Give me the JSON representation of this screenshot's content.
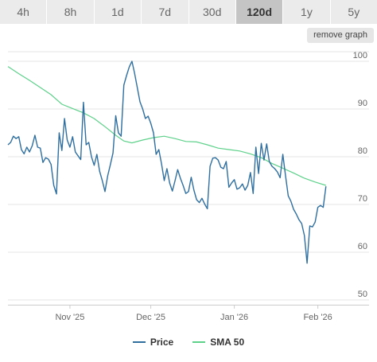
{
  "toolbar": {
    "ranges": [
      {
        "label": "4h",
        "active": false
      },
      {
        "label": "8h",
        "active": false
      },
      {
        "label": "1d",
        "active": false
      },
      {
        "label": "7d",
        "active": false
      },
      {
        "label": "30d",
        "active": false
      },
      {
        "label": "120d",
        "active": true
      },
      {
        "label": "1y",
        "active": false
      },
      {
        "label": "5y",
        "active": false
      }
    ],
    "remove_label": "remove graph"
  },
  "colors": {
    "price": "#2f6fa0",
    "sma": "#5dd18a",
    "grid": "#e6e6e6"
  },
  "chart_data": {
    "type": "line",
    "x_start": "2025-10-09",
    "x_end": "2026-02-20",
    "xticks": [
      {
        "date": "2025-11-01",
        "label": "Nov '25"
      },
      {
        "date": "2025-12-01",
        "label": "Dec '25"
      },
      {
        "date": "2026-01-01",
        "label": "Jan '26"
      },
      {
        "date": "2026-02-01",
        "label": "Feb '26"
      }
    ],
    "ylim": [
      49,
      102
    ],
    "yticks": [
      50,
      60,
      70,
      80,
      90,
      100
    ],
    "grid": true,
    "legend": "bottom",
    "series": [
      {
        "name": "Price",
        "points": [
          [
            "2025-10-09",
            82.5
          ],
          [
            "2025-10-10",
            83.0
          ],
          [
            "2025-10-11",
            84.3
          ],
          [
            "2025-10-12",
            83.8
          ],
          [
            "2025-10-13",
            84.2
          ],
          [
            "2025-10-14",
            81.5
          ],
          [
            "2025-10-15",
            80.6
          ],
          [
            "2025-10-16",
            82.0
          ],
          [
            "2025-10-17",
            81.0
          ],
          [
            "2025-10-18",
            82.3
          ],
          [
            "2025-10-19",
            84.5
          ],
          [
            "2025-10-20",
            82.0
          ],
          [
            "2025-10-21",
            81.8
          ],
          [
            "2025-10-22",
            78.8
          ],
          [
            "2025-10-23",
            79.8
          ],
          [
            "2025-10-24",
            79.5
          ],
          [
            "2025-10-25",
            78.4
          ],
          [
            "2025-10-26",
            74.0
          ],
          [
            "2025-10-27",
            72.2
          ],
          [
            "2025-10-28",
            85.0
          ],
          [
            "2025-10-29",
            81.3
          ],
          [
            "2025-10-30",
            88.0
          ],
          [
            "2025-10-31",
            83.5
          ],
          [
            "2025-11-01",
            82.0
          ],
          [
            "2025-11-02",
            84.2
          ],
          [
            "2025-11-03",
            81.0
          ],
          [
            "2025-11-04",
            80.2
          ],
          [
            "2025-11-05",
            79.4
          ],
          [
            "2025-11-06",
            91.4
          ],
          [
            "2025-11-07",
            82.5
          ],
          [
            "2025-11-08",
            83.0
          ],
          [
            "2025-11-09",
            80.0
          ],
          [
            "2025-11-10",
            78.2
          ],
          [
            "2025-11-11",
            80.5
          ],
          [
            "2025-11-12",
            77.0
          ],
          [
            "2025-11-13",
            75.0
          ],
          [
            "2025-11-14",
            72.7
          ],
          [
            "2025-11-15",
            76.0
          ],
          [
            "2025-11-16",
            78.3
          ],
          [
            "2025-11-17",
            80.8
          ],
          [
            "2025-11-18",
            88.6
          ],
          [
            "2025-11-19",
            85.0
          ],
          [
            "2025-11-20",
            84.3
          ],
          [
            "2025-11-21",
            95.0
          ],
          [
            "2025-11-22",
            97.0
          ],
          [
            "2025-11-23",
            98.8
          ],
          [
            "2025-11-24",
            100.0
          ],
          [
            "2025-11-25",
            97.5
          ],
          [
            "2025-11-26",
            94.5
          ],
          [
            "2025-11-27",
            91.5
          ],
          [
            "2025-11-28",
            90.0
          ],
          [
            "2025-11-29",
            88.0
          ],
          [
            "2025-11-30",
            88.5
          ],
          [
            "2025-12-01",
            87.0
          ],
          [
            "2025-12-02",
            85.0
          ],
          [
            "2025-12-03",
            80.5
          ],
          [
            "2025-12-04",
            81.5
          ],
          [
            "2025-12-05",
            78.5
          ],
          [
            "2025-12-06",
            75.0
          ],
          [
            "2025-12-07",
            77.5
          ],
          [
            "2025-12-08",
            74.5
          ],
          [
            "2025-12-09",
            72.8
          ],
          [
            "2025-12-10",
            75.0
          ],
          [
            "2025-12-11",
            77.3
          ],
          [
            "2025-12-12",
            75.5
          ],
          [
            "2025-12-13",
            74.0
          ],
          [
            "2025-12-14",
            72.3
          ],
          [
            "2025-12-15",
            72.7
          ],
          [
            "2025-12-16",
            75.7
          ],
          [
            "2025-12-17",
            73.0
          ],
          [
            "2025-12-18",
            71.0
          ],
          [
            "2025-12-19",
            70.4
          ],
          [
            "2025-12-20",
            71.3
          ],
          [
            "2025-12-21",
            70.1
          ],
          [
            "2025-12-22",
            69.1
          ],
          [
            "2025-12-23",
            78.0
          ],
          [
            "2025-12-24",
            79.7
          ],
          [
            "2025-12-25",
            79.8
          ],
          [
            "2025-12-26",
            79.3
          ],
          [
            "2025-12-27",
            77.8
          ],
          [
            "2025-12-28",
            77.5
          ],
          [
            "2025-12-29",
            79.0
          ],
          [
            "2025-12-30",
            73.6
          ],
          [
            "2025-12-31",
            74.5
          ],
          [
            "2026-01-01",
            75.2
          ],
          [
            "2026-01-02",
            73.2
          ],
          [
            "2026-01-03",
            73.5
          ],
          [
            "2026-01-04",
            74.3
          ],
          [
            "2026-01-05",
            73.0
          ],
          [
            "2026-01-06",
            74.0
          ],
          [
            "2026-01-07",
            76.7
          ],
          [
            "2026-01-08",
            72.3
          ],
          [
            "2026-01-09",
            82.0
          ],
          [
            "2026-01-10",
            76.5
          ],
          [
            "2026-01-11",
            82.8
          ],
          [
            "2026-01-12",
            79.3
          ],
          [
            "2026-01-13",
            82.7
          ],
          [
            "2026-01-14",
            79.0
          ],
          [
            "2026-01-15",
            78.0
          ],
          [
            "2026-01-16",
            77.5
          ],
          [
            "2026-01-17",
            76.8
          ],
          [
            "2026-01-18",
            75.6
          ],
          [
            "2026-01-19",
            80.5
          ],
          [
            "2026-01-20",
            76.0
          ],
          [
            "2026-01-21",
            71.8
          ],
          [
            "2026-01-22",
            70.7
          ],
          [
            "2026-01-23",
            69.0
          ],
          [
            "2026-01-24",
            68.0
          ],
          [
            "2026-01-25",
            66.8
          ],
          [
            "2026-01-26",
            66.0
          ],
          [
            "2026-01-27",
            63.5
          ],
          [
            "2026-01-28",
            57.7
          ],
          [
            "2026-01-29",
            65.5
          ],
          [
            "2026-01-30",
            65.3
          ],
          [
            "2026-01-31",
            66.3
          ],
          [
            "2026-02-01",
            69.4
          ],
          [
            "2026-02-02",
            69.8
          ],
          [
            "2026-02-03",
            69.4
          ],
          [
            "2026-02-04",
            73.8
          ]
        ]
      },
      {
        "name": "SMA 50",
        "points": [
          [
            "2025-10-09",
            98.9
          ],
          [
            "2025-10-13",
            97.4
          ],
          [
            "2025-10-17",
            96.0
          ],
          [
            "2025-10-21",
            94.5
          ],
          [
            "2025-10-25",
            93.0
          ],
          [
            "2025-10-29",
            91.0
          ],
          [
            "2025-11-02",
            90.1
          ],
          [
            "2025-11-06",
            89.2
          ],
          [
            "2025-11-10",
            88.0
          ],
          [
            "2025-11-14",
            86.3
          ],
          [
            "2025-11-18",
            84.5
          ],
          [
            "2025-11-21",
            83.3
          ],
          [
            "2025-11-24",
            82.9
          ],
          [
            "2025-11-28",
            83.5
          ],
          [
            "2025-12-02",
            84.0
          ],
          [
            "2025-12-06",
            84.3
          ],
          [
            "2025-12-10",
            83.8
          ],
          [
            "2025-12-14",
            83.2
          ],
          [
            "2025-12-18",
            83.1
          ],
          [
            "2025-12-22",
            82.5
          ],
          [
            "2025-12-26",
            81.8
          ],
          [
            "2025-12-30",
            81.5
          ],
          [
            "2026-01-03",
            81.2
          ],
          [
            "2026-01-07",
            80.6
          ],
          [
            "2026-01-11",
            79.8
          ],
          [
            "2026-01-15",
            78.6
          ],
          [
            "2026-01-19",
            77.6
          ],
          [
            "2026-01-23",
            76.6
          ],
          [
            "2026-01-27",
            75.5
          ],
          [
            "2026-01-31",
            74.7
          ],
          [
            "2026-02-04",
            74.0
          ]
        ]
      }
    ]
  }
}
